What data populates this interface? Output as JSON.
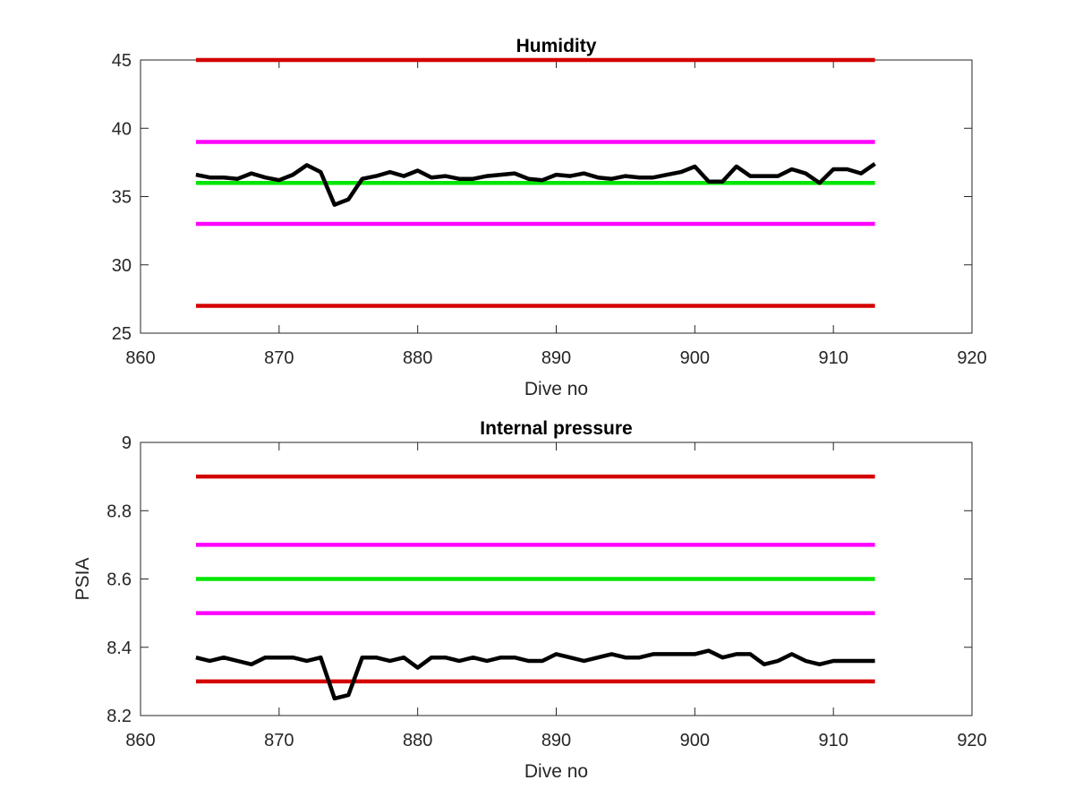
{
  "chart_data": [
    {
      "type": "line",
      "title": "Humidity",
      "xlabel": "Dive no",
      "ylabel": "",
      "xlim": [
        860,
        920
      ],
      "ylim": [
        25,
        45
      ],
      "xticks": [
        860,
        870,
        880,
        890,
        900,
        910,
        920
      ],
      "yticks": [
        25,
        30,
        35,
        40,
        45
      ],
      "grid": false,
      "reference_lines": [
        {
          "y": 45,
          "x": [
            864,
            913
          ],
          "color": "#d40000"
        },
        {
          "y": 39,
          "x": [
            864,
            913
          ],
          "color": "#ff00ff"
        },
        {
          "y": 36,
          "x": [
            864,
            913
          ],
          "color": "#00e600"
        },
        {
          "y": 33,
          "x": [
            864,
            913
          ],
          "color": "#ff00ff"
        },
        {
          "y": 27,
          "x": [
            864,
            913
          ],
          "color": "#d40000"
        }
      ],
      "series": [
        {
          "color": "#000000",
          "x": [
            864,
            865,
            866,
            867,
            868,
            869,
            870,
            871,
            872,
            873,
            874,
            875,
            876,
            877,
            878,
            879,
            880,
            881,
            882,
            883,
            884,
            885,
            886,
            887,
            888,
            889,
            890,
            891,
            892,
            893,
            894,
            895,
            896,
            897,
            898,
            899,
            900,
            901,
            902,
            903,
            904,
            905,
            906,
            907,
            908,
            909,
            910,
            911,
            912,
            913
          ],
          "values": [
            36.6,
            36.4,
            36.4,
            36.3,
            36.7,
            36.4,
            36.2,
            36.6,
            37.3,
            36.8,
            34.4,
            34.8,
            36.3,
            36.5,
            36.8,
            36.5,
            36.9,
            36.4,
            36.5,
            36.3,
            36.3,
            36.5,
            36.6,
            36.7,
            36.3,
            36.2,
            36.6,
            36.5,
            36.7,
            36.4,
            36.3,
            36.5,
            36.4,
            36.4,
            36.6,
            36.8,
            37.2,
            36.1,
            36.1,
            37.2,
            36.5,
            36.5,
            36.5,
            37.0,
            36.7,
            36.0,
            37.0,
            37.0,
            36.7,
            37.4
          ]
        }
      ]
    },
    {
      "type": "line",
      "title": "Internal pressure",
      "xlabel": "Dive no",
      "ylabel": "PSIA",
      "xlim": [
        860,
        920
      ],
      "ylim": [
        8.2,
        9
      ],
      "xticks": [
        860,
        870,
        880,
        890,
        900,
        910,
        920
      ],
      "yticks": [
        8.2,
        8.4,
        8.6,
        8.8,
        9
      ],
      "ytick_labels": [
        "8.2",
        "8.4",
        "8.6",
        "8.8",
        "9"
      ],
      "grid": false,
      "reference_lines": [
        {
          "y": 8.9,
          "x": [
            864,
            913
          ],
          "color": "#d40000"
        },
        {
          "y": 8.7,
          "x": [
            864,
            913
          ],
          "color": "#ff00ff"
        },
        {
          "y": 8.6,
          "x": [
            864,
            913
          ],
          "color": "#00e600"
        },
        {
          "y": 8.5,
          "x": [
            864,
            913
          ],
          "color": "#ff00ff"
        },
        {
          "y": 8.3,
          "x": [
            864,
            913
          ],
          "color": "#d40000"
        }
      ],
      "series": [
        {
          "color": "#000000",
          "x": [
            864,
            865,
            866,
            867,
            868,
            869,
            870,
            871,
            872,
            873,
            874,
            875,
            876,
            877,
            878,
            879,
            880,
            881,
            882,
            883,
            884,
            885,
            886,
            887,
            888,
            889,
            890,
            891,
            892,
            893,
            894,
            895,
            896,
            897,
            898,
            899,
            900,
            901,
            902,
            903,
            904,
            905,
            906,
            907,
            908,
            909,
            910,
            911,
            912,
            913
          ],
          "values": [
            8.37,
            8.36,
            8.37,
            8.36,
            8.35,
            8.37,
            8.37,
            8.37,
            8.36,
            8.37,
            8.25,
            8.26,
            8.37,
            8.37,
            8.36,
            8.37,
            8.34,
            8.37,
            8.37,
            8.36,
            8.37,
            8.36,
            8.37,
            8.37,
            8.36,
            8.36,
            8.38,
            8.37,
            8.36,
            8.37,
            8.38,
            8.37,
            8.37,
            8.38,
            8.38,
            8.38,
            8.38,
            8.39,
            8.37,
            8.38,
            8.38,
            8.35,
            8.36,
            8.38,
            8.36,
            8.35,
            8.36,
            8.36,
            8.36,
            8.36
          ]
        }
      ]
    }
  ]
}
